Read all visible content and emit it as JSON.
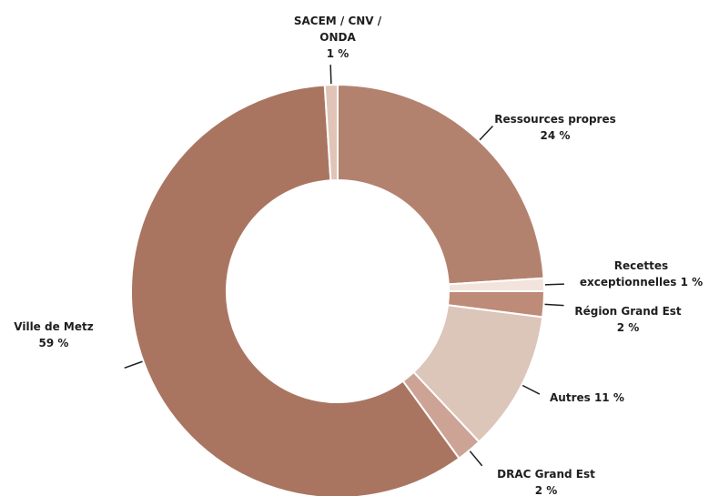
{
  "chart_data": {
    "type": "donut",
    "categories": [
      "Ressources propres",
      "Recettes exceptionnelles",
      "Région Grand Est",
      "Autres",
      "DRAC Grand Est",
      "Ville de Metz",
      "SACEM / CNV / ONDA"
    ],
    "values": [
      24,
      1,
      2,
      11,
      2,
      59,
      1
    ],
    "value_labels": [
      "24 %",
      "1 %",
      "2 %",
      "11 %",
      "2 %",
      "59 %",
      "1 %"
    ],
    "colors": [
      "#b3826f",
      "#f3e3dd",
      "#be8b78",
      "#dcc5b9",
      "#cda396",
      "#a97561",
      "#e0c4b8"
    ]
  }
}
